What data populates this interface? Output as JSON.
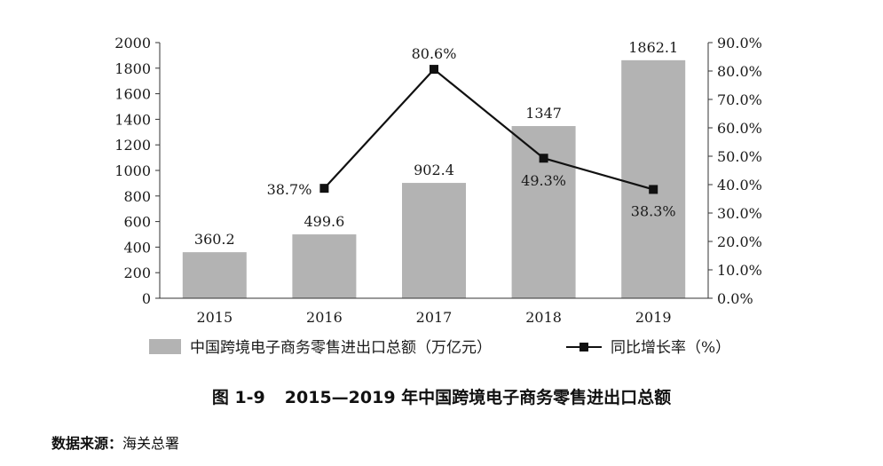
{
  "chart_data": {
    "type": "bar+line",
    "categories": [
      "2015",
      "2016",
      "2017",
      "2018",
      "2019"
    ],
    "bar_series": {
      "name": "中国跨境电子商务零售进出口总额（万亿元）",
      "values": [
        360.2,
        499.6,
        902.4,
        1347,
        1862.1
      ],
      "labels": [
        "360.2",
        "499.6",
        "902.4",
        "1347",
        "1862.1"
      ],
      "color": "#b3b3b3"
    },
    "line_series": {
      "name": "同比增长率（%）",
      "x": [
        "2016",
        "2017",
        "2018",
        "2019"
      ],
      "values": [
        38.7,
        80.6,
        49.3,
        38.3
      ],
      "labels": [
        "38.7%",
        "80.6%",
        "49.3%",
        "38.3%"
      ],
      "color": "#111111"
    },
    "ylim_left": [
      0,
      2000
    ],
    "yticks_left": [
      "0",
      "200",
      "400",
      "600",
      "800",
      "1000",
      "1200",
      "1400",
      "1600",
      "1800",
      "2000"
    ],
    "ylim_right": [
      0,
      90
    ],
    "yticks_right": [
      "0.0%",
      "10.0%",
      "20.0%",
      "30.0%",
      "40.0%",
      "50.0%",
      "60.0%",
      "70.0%",
      "80.0%",
      "90.0%"
    ],
    "grid": false,
    "legend_position": "bottom"
  },
  "caption": {
    "number": "图 1-9",
    "title": "2015—2019 年中国跨境电子商务零售进出口总额"
  },
  "source": {
    "label": "数据来源：",
    "text": "海关总署"
  }
}
